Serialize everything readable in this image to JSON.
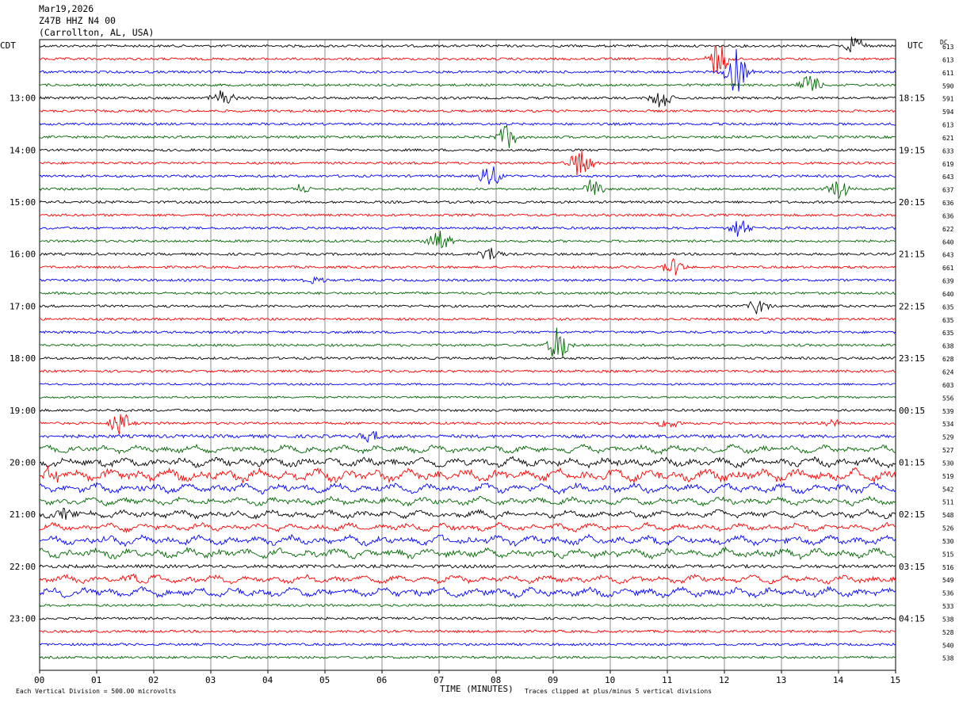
{
  "header": {
    "date": "Mar19,2026",
    "station": "Z47B HHZ N4 00",
    "location": "(Carrollton, AL, USA)"
  },
  "left_timezone": "CDT",
  "right_timezone": "UTC",
  "dc_header": "DC",
  "footer": {
    "scale": "Each Vertical Division =  500.00 microvolts",
    "xlabel": "TIME (MINUTES)",
    "clip_note": "Traces clipped at plus/minus 5 vertical divisions"
  },
  "colors": {
    "trace_cycle": [
      "#000000",
      "#ff0000",
      "#0000ff",
      "#006600"
    ],
    "grid": "#000000"
  },
  "chart_data": {
    "type": "line",
    "title": "",
    "xlabel": "TIME (MINUTES)",
    "xlim": [
      0,
      15
    ],
    "x_ticks": [
      "00",
      "01",
      "02",
      "03",
      "04",
      "05",
      "06",
      "07",
      "08",
      "09",
      "10",
      "11",
      "12",
      "13",
      "14",
      "15"
    ],
    "left_hour_labels": [
      "13:00",
      "14:00",
      "15:00",
      "16:00",
      "17:00",
      "18:00",
      "19:00",
      "20:00",
      "21:00",
      "22:00",
      "23:00"
    ],
    "right_hour_labels": [
      "18:15",
      "19:15",
      "20:15",
      "21:15",
      "22:15",
      "23:15",
      "00:15",
      "01:15",
      "02:15",
      "03:15",
      "04:15"
    ],
    "trace_minutes": 15,
    "dc_offsets": [
      613,
      613,
      611,
      590,
      591,
      594,
      613,
      621,
      633,
      619,
      643,
      637,
      636,
      636,
      622,
      640,
      643,
      661,
      639,
      640,
      635,
      635,
      635,
      638,
      628,
      624,
      603,
      556,
      539,
      534,
      529,
      527,
      530,
      519,
      542,
      511,
      548,
      526,
      530,
      515,
      516,
      549,
      536,
      533,
      538,
      528,
      540,
      538
    ],
    "trace_amplitude": [
      3,
      3,
      3,
      3,
      3,
      3,
      3,
      3,
      3,
      3,
      3,
      3,
      3,
      3,
      3,
      3,
      3,
      3,
      3,
      3,
      3,
      3,
      3,
      3,
      3,
      3,
      2.5,
      2.5,
      3,
      3,
      4,
      5,
      6,
      8,
      6,
      5,
      5,
      5,
      6,
      6,
      4,
      5,
      6,
      3,
      3,
      3,
      3,
      3
    ],
    "events": [
      {
        "trace": 0,
        "minute": 14.3,
        "amp": 12
      },
      {
        "trace": 1,
        "minute": 11.9,
        "amp": 22
      },
      {
        "trace": 2,
        "minute": 12.2,
        "amp": 28
      },
      {
        "trace": 3,
        "minute": 13.5,
        "amp": 14
      },
      {
        "trace": 4,
        "minute": 3.2,
        "amp": 14
      },
      {
        "trace": 4,
        "minute": 10.9,
        "amp": 14
      },
      {
        "trace": 7,
        "minute": 8.2,
        "amp": 18
      },
      {
        "trace": 9,
        "minute": 9.5,
        "amp": 22
      },
      {
        "trace": 10,
        "minute": 7.9,
        "amp": 16
      },
      {
        "trace": 11,
        "minute": 9.7,
        "amp": 12
      },
      {
        "trace": 11,
        "minute": 14.0,
        "amp": 14
      },
      {
        "trace": 11,
        "minute": 4.6,
        "amp": 6
      },
      {
        "trace": 14,
        "minute": 12.3,
        "amp": 14
      },
      {
        "trace": 15,
        "minute": 7.0,
        "amp": 18
      },
      {
        "trace": 16,
        "minute": 7.9,
        "amp": 10
      },
      {
        "trace": 17,
        "minute": 11.1,
        "amp": 12
      },
      {
        "trace": 18,
        "minute": 4.8,
        "amp": 5
      },
      {
        "trace": 20,
        "minute": 12.6,
        "amp": 10
      },
      {
        "trace": 23,
        "minute": 9.1,
        "amp": 24
      },
      {
        "trace": 29,
        "minute": 1.4,
        "amp": 16
      },
      {
        "trace": 29,
        "minute": 11.0,
        "amp": 6
      },
      {
        "trace": 29,
        "minute": 13.9,
        "amp": 6
      },
      {
        "trace": 30,
        "minute": 5.8,
        "amp": 7
      },
      {
        "trace": 33,
        "minute": 0.2,
        "amp": 8
      },
      {
        "trace": 36,
        "minute": 0.5,
        "amp": 8
      },
      {
        "trace": 41,
        "minute": 1.7,
        "amp": 12
      }
    ]
  }
}
